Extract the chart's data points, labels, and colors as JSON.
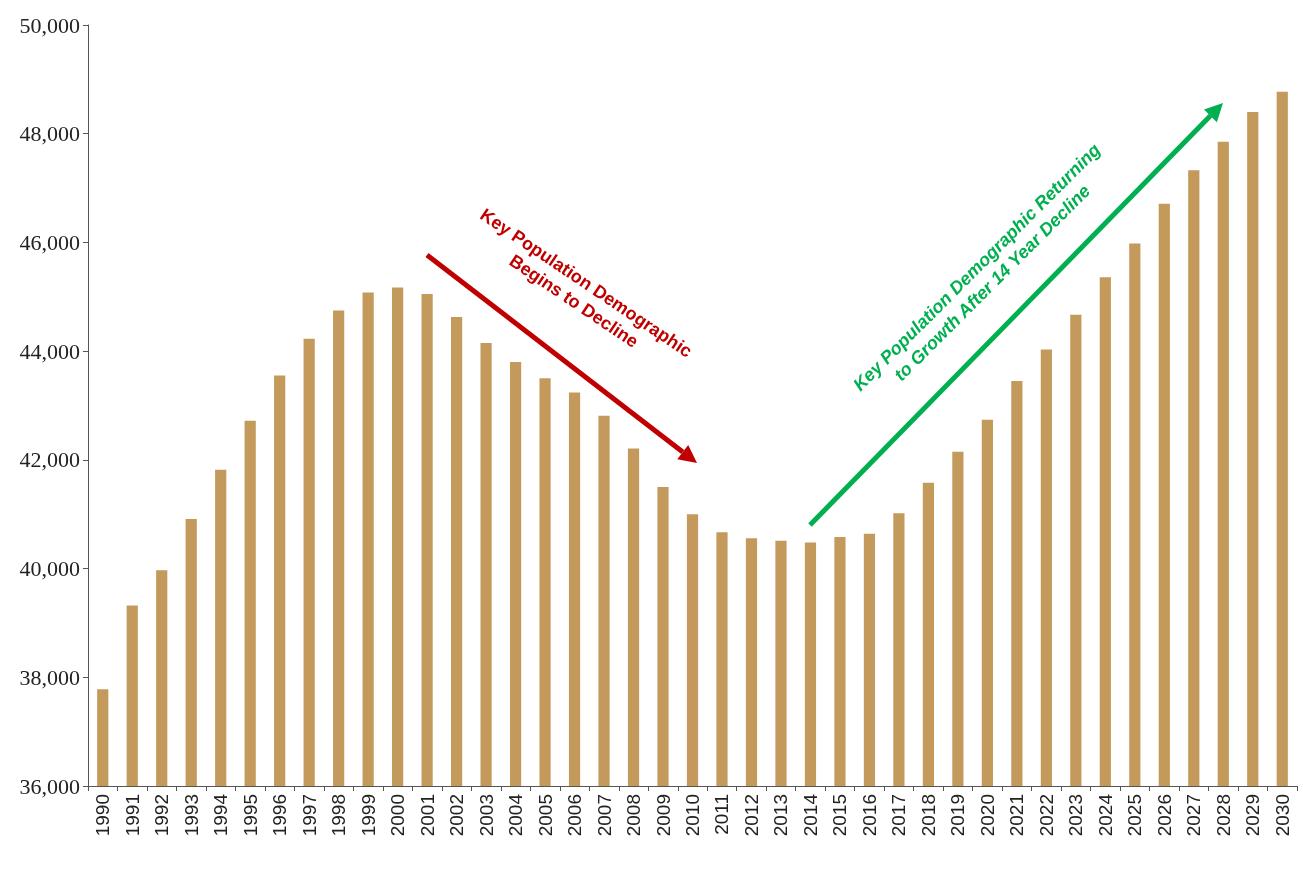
{
  "chart_data": {
    "type": "bar",
    "categories": [
      "1990",
      "1991",
      "1992",
      "1993",
      "1994",
      "1995",
      "1996",
      "1997",
      "1998",
      "1999",
      "2000",
      "2001",
      "2002",
      "2003",
      "2004",
      "2005",
      "2006",
      "2007",
      "2008",
      "2009",
      "2010",
      "2011",
      "2012",
      "2013",
      "2014",
      "2015",
      "2016",
      "2017",
      "2018",
      "2019",
      "2020",
      "2021",
      "2022",
      "2023",
      "2024",
      "2025",
      "2026",
      "2027",
      "2028",
      "2029",
      "2030"
    ],
    "values": [
      37780,
      39320,
      39970,
      40910,
      41820,
      42720,
      43550,
      44230,
      44750,
      45080,
      45170,
      45050,
      44630,
      44150,
      43800,
      43500,
      43240,
      42810,
      42210,
      41500,
      41000,
      40670,
      40560,
      40510,
      40480,
      40580,
      40640,
      41020,
      41580,
      42150,
      42740,
      43450,
      44030,
      44670,
      45360,
      45980,
      46710,
      47330,
      47850,
      48400,
      48770
    ],
    "color": "#c49a5c",
    "ylim": [
      36000,
      50000
    ],
    "yticks": [
      {
        "value": 36000,
        "label": "36,000"
      },
      {
        "value": 38000,
        "label": "38,000"
      },
      {
        "value": 40000,
        "label": "40,000"
      },
      {
        "value": 42000,
        "label": "42,000"
      },
      {
        "value": 44000,
        "label": "44,000"
      },
      {
        "value": 46000,
        "label": "46,000"
      },
      {
        "value": 48000,
        "label": "48,000"
      },
      {
        "value": 50000,
        "label": "50,000"
      }
    ],
    "annotations": [
      "Key Population Demographic Begins to Decline",
      "Key Population Demographic Returning to Growth After 14 Year Decline"
    ],
    "grid": false
  }
}
